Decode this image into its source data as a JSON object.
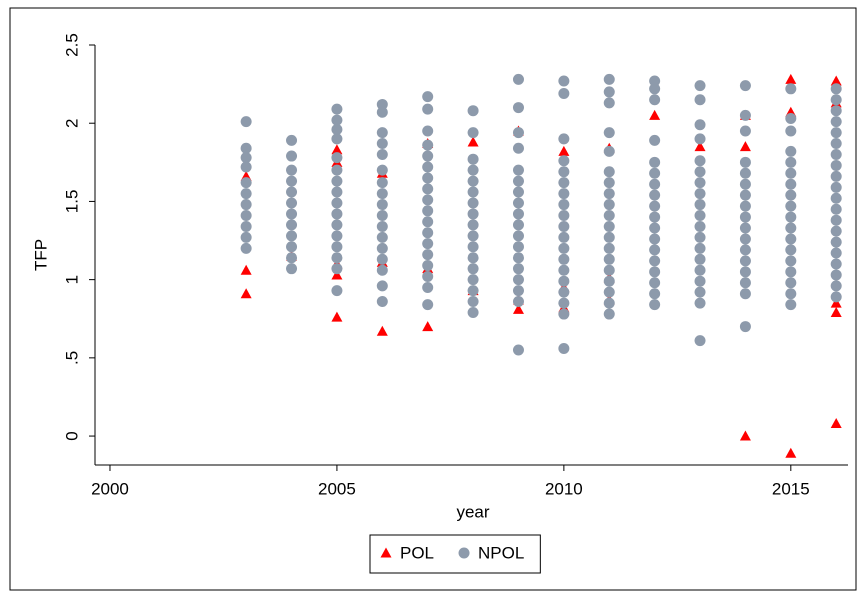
{
  "chart_data": {
    "type": "scatter",
    "xlabel": "year",
    "ylabel": "TFP",
    "xlim": [
      1999.67,
      2016.26
    ],
    "ylim": [
      -0.185,
      2.5
    ],
    "xticks": [
      2000,
      2005,
      2010,
      2015
    ],
    "yticks": [
      0,
      {
        "value": 0.5,
        "label": ".5"
      },
      1,
      1.5,
      2,
      2.5
    ],
    "legend": "bottom",
    "series": [
      {
        "name": "POL",
        "color": "#ff0000",
        "marker": "triangle",
        "x": [
          2003,
          2003,
          2003,
          2004,
          2005,
          2005,
          2005,
          2005,
          2005,
          2006,
          2006,
          2006,
          2007,
          2007,
          2007,
          2008,
          2008,
          2009,
          2009,
          2009,
          2010,
          2010,
          2010,
          2011,
          2011,
          2011,
          2012,
          2013,
          2014,
          2014,
          2014,
          2015,
          2015,
          2015,
          2016,
          2016,
          2016,
          2016,
          2016
        ],
        "values": [
          0.91,
          1.06,
          1.66,
          1.15,
          0.76,
          1.03,
          1.1,
          1.75,
          1.83,
          0.67,
          1.11,
          1.68,
          0.7,
          1.07,
          1.87,
          0.93,
          1.88,
          0.81,
          0.87,
          1.95,
          0.82,
          0.95,
          1.82,
          0.87,
          1.01,
          1.84,
          2.05,
          1.85,
          0.0,
          1.85,
          2.05,
          -0.11,
          2.07,
          2.28,
          0.08,
          0.79,
          0.85,
          2.13,
          2.27
        ]
      },
      {
        "name": "NPOL",
        "color": "#8d9aab",
        "marker": "circle",
        "x": [
          2003,
          2003,
          2003,
          2003,
          2003,
          2003,
          2003,
          2003,
          2003,
          2003,
          2003,
          2004,
          2004,
          2004,
          2004,
          2004,
          2004,
          2004,
          2004,
          2004,
          2004,
          2004,
          2004,
          2005,
          2005,
          2005,
          2005,
          2005,
          2005,
          2005,
          2005,
          2005,
          2005,
          2005,
          2005,
          2005,
          2005,
          2005,
          2005,
          2006,
          2006,
          2006,
          2006,
          2006,
          2006,
          2006,
          2006,
          2006,
          2006,
          2006,
          2006,
          2006,
          2006,
          2006,
          2006,
          2006,
          2007,
          2007,
          2007,
          2007,
          2007,
          2007,
          2007,
          2007,
          2007,
          2007,
          2007,
          2007,
          2007,
          2007,
          2007,
          2007,
          2007,
          2007,
          2008,
          2008,
          2008,
          2008,
          2008,
          2008,
          2008,
          2008,
          2008,
          2008,
          2008,
          2008,
          2008,
          2008,
          2008,
          2008,
          2008,
          2009,
          2009,
          2009,
          2009,
          2009,
          2009,
          2009,
          2009,
          2009,
          2009,
          2009,
          2009,
          2009,
          2009,
          2009,
          2009,
          2009,
          2009,
          2010,
          2010,
          2010,
          2010,
          2010,
          2010,
          2010,
          2010,
          2010,
          2010,
          2010,
          2010,
          2010,
          2010,
          2010,
          2010,
          2010,
          2010,
          2010,
          2011,
          2011,
          2011,
          2011,
          2011,
          2011,
          2011,
          2011,
          2011,
          2011,
          2011,
          2011,
          2011,
          2011,
          2011,
          2011,
          2011,
          2011,
          2011,
          2012,
          2012,
          2012,
          2012,
          2012,
          2012,
          2012,
          2012,
          2012,
          2012,
          2012,
          2012,
          2012,
          2012,
          2012,
          2012,
          2012,
          2012,
          2013,
          2013,
          2013,
          2013,
          2013,
          2013,
          2013,
          2013,
          2013,
          2013,
          2013,
          2013,
          2013,
          2013,
          2013,
          2013,
          2013,
          2013,
          2013,
          2014,
          2014,
          2014,
          2014,
          2014,
          2014,
          2014,
          2014,
          2014,
          2014,
          2014,
          2014,
          2014,
          2014,
          2014,
          2014,
          2014,
          2015,
          2015,
          2015,
          2015,
          2015,
          2015,
          2015,
          2015,
          2015,
          2015,
          2015,
          2015,
          2015,
          2015,
          2015,
          2015,
          2015,
          2015,
          2016,
          2016,
          2016,
          2016,
          2016,
          2016,
          2016,
          2016,
          2016,
          2016,
          2016,
          2016,
          2016,
          2016,
          2016,
          2016,
          2016,
          2016,
          2016,
          2016
        ],
        "values": [
          1.2,
          1.27,
          1.34,
          1.41,
          1.48,
          1.55,
          1.62,
          1.72,
          1.78,
          1.84,
          2.01,
          1.07,
          1.14,
          1.21,
          1.28,
          1.35,
          1.42,
          1.49,
          1.56,
          1.63,
          1.7,
          1.79,
          1.89,
          0.93,
          1.07,
          1.14,
          1.21,
          1.28,
          1.35,
          1.42,
          1.49,
          1.56,
          1.63,
          1.7,
          1.78,
          1.9,
          1.96,
          2.02,
          2.09,
          0.86,
          0.96,
          1.06,
          1.13,
          1.2,
          1.27,
          1.34,
          1.41,
          1.48,
          1.55,
          1.62,
          1.7,
          1.8,
          1.87,
          1.94,
          2.07,
          2.12,
          0.84,
          0.95,
          1.02,
          1.09,
          1.16,
          1.23,
          1.3,
          1.37,
          1.44,
          1.51,
          1.58,
          1.65,
          1.72,
          1.79,
          1.86,
          1.95,
          2.09,
          2.17,
          0.79,
          0.86,
          0.93,
          1.0,
          1.07,
          1.14,
          1.21,
          1.28,
          1.35,
          1.42,
          1.49,
          1.56,
          1.63,
          1.7,
          1.77,
          1.94,
          2.08,
          0.55,
          0.86,
          0.93,
          1.0,
          1.07,
          1.14,
          1.21,
          1.28,
          1.35,
          1.42,
          1.49,
          1.56,
          1.63,
          1.7,
          1.84,
          1.94,
          2.1,
          2.28,
          0.56,
          0.78,
          0.85,
          0.92,
          0.99,
          1.06,
          1.13,
          1.2,
          1.27,
          1.34,
          1.41,
          1.48,
          1.55,
          1.62,
          1.69,
          1.76,
          1.9,
          2.19,
          2.27,
          0.78,
          0.85,
          0.92,
          0.99,
          1.06,
          1.13,
          1.2,
          1.27,
          1.34,
          1.41,
          1.48,
          1.55,
          1.62,
          1.69,
          1.82,
          1.94,
          2.13,
          2.2,
          2.28,
          0.84,
          0.91,
          0.98,
          1.05,
          1.12,
          1.19,
          1.26,
          1.33,
          1.4,
          1.47,
          1.54,
          1.61,
          1.68,
          1.75,
          1.89,
          2.15,
          2.22,
          2.27,
          0.61,
          0.85,
          0.92,
          0.99,
          1.06,
          1.13,
          1.2,
          1.27,
          1.34,
          1.41,
          1.48,
          1.55,
          1.62,
          1.69,
          1.76,
          1.9,
          1.99,
          2.15,
          2.24,
          0.7,
          0.91,
          0.98,
          1.05,
          1.12,
          1.19,
          1.26,
          1.33,
          1.4,
          1.47,
          1.54,
          1.61,
          1.68,
          1.75,
          1.95,
          2.05,
          2.24,
          0.84,
          0.91,
          0.98,
          1.05,
          1.12,
          1.19,
          1.26,
          1.33,
          1.4,
          1.47,
          1.54,
          1.61,
          1.68,
          1.75,
          1.82,
          1.95,
          2.03,
          2.22,
          0.89,
          0.96,
          1.03,
          1.1,
          1.17,
          1.24,
          1.31,
          1.38,
          1.45,
          1.52,
          1.59,
          1.66,
          1.73,
          1.8,
          1.87,
          1.94,
          2.01,
          2.08,
          2.15,
          2.22
        ]
      }
    ]
  }
}
